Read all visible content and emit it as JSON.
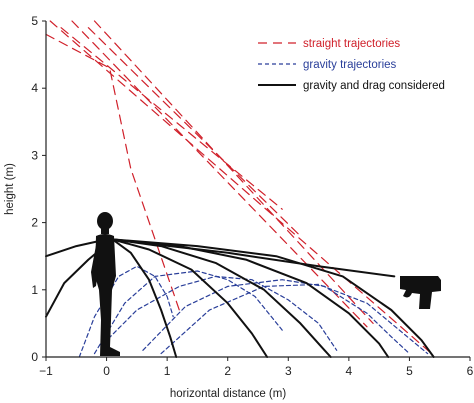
{
  "chart_data": {
    "type": "line",
    "xlabel": "horizontal distance (m)",
    "ylabel": "height (m)",
    "xlim": [
      -1,
      6
    ],
    "ylim": [
      0,
      5
    ],
    "x_ticks": [
      -1,
      0,
      1,
      2,
      3,
      4,
      5,
      6
    ],
    "y_ticks": [
      0,
      1,
      2,
      3,
      4,
      5
    ],
    "grid": false,
    "legend_position": "top-right",
    "legend": [
      {
        "label": "straight trajectories",
        "style": "long-dash",
        "color": "#d0202a"
      },
      {
        "label": "gravity trajectories",
        "style": "short-dash",
        "color": "#2a3f9a"
      },
      {
        "label": "gravity and drag considered",
        "style": "solid",
        "color": "#111111"
      }
    ],
    "series": [
      {
        "group": "straight trajectories",
        "color": "#d0202a",
        "points": [
          [
            -0.93,
            5
          ],
          [
            5.38,
            0.04
          ]
        ]
      },
      {
        "group": "straight trajectories",
        "color": "#d0202a",
        "points": [
          [
            -0.57,
            5
          ],
          [
            4.3,
            0.45
          ]
        ]
      },
      {
        "group": "straight trajectories",
        "color": "#d0202a",
        "points": [
          [
            -0.2,
            5
          ],
          [
            4.4,
            0.5
          ]
        ]
      },
      {
        "group": "straight trajectories",
        "color": "#d0202a",
        "points": [
          [
            -0.3,
            4.9
          ],
          [
            3.2,
            1.8
          ]
        ]
      },
      {
        "group": "straight trajectories",
        "color": "#d0202a",
        "points": [
          [
            -0.75,
            4.9
          ],
          [
            2.9,
            2.2
          ]
        ]
      },
      {
        "group": "straight trajectories",
        "color": "#d0202a",
        "points": [
          [
            -1,
            4.8
          ],
          [
            0.05,
            4.3
          ],
          [
            0.4,
            2.8
          ],
          [
            1.2,
            0.7
          ]
        ]
      },
      {
        "group": "gravity trajectories",
        "color": "#2a3f9a",
        "points": [
          [
            -0.45,
            0
          ],
          [
            -0.2,
            0.6
          ],
          [
            0.2,
            1.2
          ],
          [
            0.5,
            1.35
          ],
          [
            0.8,
            1.2
          ],
          [
            1.0,
            0.9
          ],
          [
            1.1,
            0.6
          ]
        ]
      },
      {
        "group": "gravity trajectories",
        "color": "#2a3f9a",
        "points": [
          [
            -0.2,
            0.05
          ],
          [
            0.3,
            0.8
          ],
          [
            0.8,
            1.2
          ],
          [
            1.5,
            1.28
          ],
          [
            2.0,
            1.15
          ],
          [
            2.45,
            0.9
          ],
          [
            2.9,
            0.4
          ]
        ]
      },
      {
        "group": "gravity trajectories",
        "color": "#2a3f9a",
        "points": [
          [
            -0.05,
            0.2
          ],
          [
            0.5,
            0.7
          ],
          [
            1.2,
            1.05
          ],
          [
            1.8,
            1.2
          ],
          [
            2.4,
            1.15
          ],
          [
            3.0,
            0.85
          ],
          [
            3.5,
            0.5
          ],
          [
            3.8,
            0.1
          ]
        ]
      },
      {
        "group": "gravity trajectories",
        "color": "#2a3f9a",
        "points": [
          [
            0.6,
            0.1
          ],
          [
            1.3,
            0.75
          ],
          [
            2.0,
            1.05
          ],
          [
            2.9,
            1.15
          ],
          [
            3.6,
            1.05
          ],
          [
            4.3,
            0.65
          ],
          [
            4.7,
            0.3
          ],
          [
            5.0,
            0.05
          ]
        ]
      },
      {
        "group": "gravity trajectories",
        "color": "#2a3f9a",
        "points": [
          [
            0.9,
            0.05
          ],
          [
            1.7,
            0.7
          ],
          [
            2.6,
            1.05
          ],
          [
            3.5,
            1.08
          ],
          [
            4.3,
            0.8
          ],
          [
            4.9,
            0.35
          ],
          [
            5.3,
            0.05
          ]
        ]
      },
      {
        "group": "gravity and drag considered",
        "color": "#111111",
        "points": [
          [
            -1,
            1.5
          ],
          [
            -0.5,
            1.65
          ],
          [
            0,
            1.75
          ]
        ]
      },
      {
        "group": "gravity and drag considered",
        "color": "#111111",
        "points": [
          [
            -1,
            0.6
          ],
          [
            -0.7,
            1.1
          ],
          [
            -0.3,
            1.45
          ],
          [
            0.1,
            1.75
          ]
        ]
      },
      {
        "group": "gravity and drag considered",
        "color": "#111111",
        "points": [
          [
            0.1,
            1.75
          ],
          [
            0.4,
            1.55
          ],
          [
            0.7,
            1.15
          ],
          [
            0.9,
            0.7
          ],
          [
            1.05,
            0.3
          ],
          [
            1.15,
            0
          ]
        ]
      },
      {
        "group": "gravity and drag considered",
        "color": "#111111",
        "points": [
          [
            0.1,
            1.75
          ],
          [
            0.7,
            1.6
          ],
          [
            1.4,
            1.3
          ],
          [
            2.0,
            0.8
          ],
          [
            2.4,
            0.35
          ],
          [
            2.65,
            0
          ]
        ]
      },
      {
        "group": "gravity and drag considered",
        "color": "#111111",
        "points": [
          [
            0.1,
            1.75
          ],
          [
            0.9,
            1.65
          ],
          [
            1.8,
            1.4
          ],
          [
            2.6,
            1.0
          ],
          [
            3.2,
            0.5
          ],
          [
            3.6,
            0.1
          ],
          [
            3.7,
            0
          ]
        ]
      },
      {
        "group": "gravity and drag considered",
        "color": "#111111",
        "points": [
          [
            0.1,
            1.75
          ],
          [
            1.2,
            1.65
          ],
          [
            2.3,
            1.45
          ],
          [
            3.3,
            1.1
          ],
          [
            4.0,
            0.65
          ],
          [
            4.5,
            0.2
          ],
          [
            4.65,
            0
          ]
        ]
      },
      {
        "group": "gravity and drag considered",
        "color": "#111111",
        "points": [
          [
            0.1,
            1.75
          ],
          [
            1.5,
            1.65
          ],
          [
            2.8,
            1.5
          ],
          [
            3.9,
            1.2
          ],
          [
            4.7,
            0.7
          ],
          [
            5.2,
            0.25
          ],
          [
            5.4,
            0
          ]
        ]
      },
      {
        "group": "gravity and drag considered",
        "color": "#111111",
        "points": [
          [
            0.1,
            1.75
          ],
          [
            2.0,
            1.55
          ],
          [
            3.5,
            1.35
          ],
          [
            4.75,
            1.2
          ]
        ]
      }
    ]
  }
}
